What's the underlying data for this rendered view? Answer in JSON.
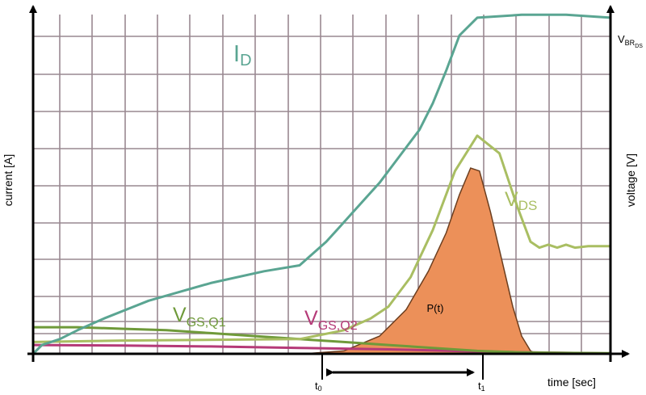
{
  "chart_data": {
    "type": "line",
    "title": "",
    "xlabel": "time [sec]",
    "ylabel_left": "current [A]",
    "ylabel_right": "voltage [V]",
    "right_top_label": {
      "main": "V",
      "sub": "BR",
      "subsub": "DS"
    },
    "markers": {
      "t0": "t",
      "t0_sub": "0",
      "t1": "t",
      "t1_sub": "1"
    },
    "grid": true,
    "colors": {
      "id": "#5aa592",
      "vds": "#a9be62",
      "vgs_q1": "#6f9a3a",
      "vgs_q2": "#b53a78",
      "power_fill": "#ec9059",
      "power_stroke": "#6b3e1f",
      "grid": "#998891",
      "axis": "#000000"
    },
    "series": [
      {
        "name": "I",
        "name_sub": "D",
        "color_key": "id",
        "points": [
          [
            0,
            0
          ],
          [
            0.2,
            0.3
          ],
          [
            0.6,
            0.5
          ],
          [
            1,
            0.8
          ],
          [
            1.6,
            1.2
          ],
          [
            2.6,
            1.8
          ],
          [
            4,
            2.4
          ],
          [
            5.2,
            2.8
          ],
          [
            6,
            3
          ],
          [
            6.3,
            3.4
          ],
          [
            6.6,
            3.8
          ],
          [
            6.9,
            4.3
          ],
          [
            7.2,
            4.8
          ],
          [
            7.5,
            5.3
          ],
          [
            7.8,
            5.8
          ],
          [
            8.1,
            6.4
          ],
          [
            8.4,
            7
          ],
          [
            8.7,
            7.6
          ],
          [
            9,
            8.5
          ],
          [
            9.3,
            9.6
          ],
          [
            9.6,
            10.8
          ],
          [
            10,
            11.4
          ],
          [
            11,
            11.5
          ],
          [
            12,
            11.5
          ],
          [
            13,
            11.4
          ]
        ]
      },
      {
        "name": "V",
        "name_sub": "DS",
        "color_key": "vds",
        "points": [
          [
            0,
            0.4
          ],
          [
            2,
            0.45
          ],
          [
            6,
            0.5
          ],
          [
            7,
            0.8
          ],
          [
            7.6,
            1.2
          ],
          [
            8,
            1.6
          ],
          [
            8.5,
            2.6
          ],
          [
            9,
            4.2
          ],
          [
            9.5,
            6.2
          ],
          [
            10,
            7.4
          ],
          [
            10.5,
            6.8
          ],
          [
            10.9,
            5
          ],
          [
            11.2,
            3.8
          ],
          [
            11.4,
            3.6
          ],
          [
            11.6,
            3.7
          ],
          [
            11.8,
            3.6
          ],
          [
            12,
            3.7
          ],
          [
            12.2,
            3.6
          ],
          [
            12.5,
            3.65
          ],
          [
            13,
            3.65
          ]
        ]
      },
      {
        "name": "V",
        "name_sub": "GS,Q1",
        "color_key": "vgs_q1",
        "points": [
          [
            0,
            0.9
          ],
          [
            1,
            0.9
          ],
          [
            2,
            0.85
          ],
          [
            3,
            0.8
          ],
          [
            4,
            0.7
          ],
          [
            5,
            0.6
          ],
          [
            6,
            0.5
          ],
          [
            7,
            0.4
          ],
          [
            8,
            0.3
          ],
          [
            9,
            0.2
          ],
          [
            10,
            0.1
          ],
          [
            11,
            0.05
          ],
          [
            12,
            0.03
          ],
          [
            13,
            0.02
          ]
        ]
      },
      {
        "name": "V",
        "name_sub": "GS,Q2",
        "color_key": "vgs_q2",
        "points": [
          [
            0,
            0.3
          ],
          [
            2,
            0.28
          ],
          [
            4,
            0.25
          ],
          [
            6,
            0.2
          ],
          [
            8,
            0.15
          ],
          [
            10,
            0.08
          ],
          [
            12,
            0.03
          ],
          [
            13,
            0.01
          ]
        ]
      },
      {
        "name": "P(t)",
        "color_key": "power_fill",
        "points": [
          [
            6.1,
            0
          ],
          [
            7,
            0.1
          ],
          [
            7.8,
            0.6
          ],
          [
            8.4,
            1.5
          ],
          [
            8.9,
            2.8
          ],
          [
            9.3,
            4.1
          ],
          [
            9.6,
            5.4
          ],
          [
            9.85,
            6.3
          ],
          [
            10.05,
            6.2
          ],
          [
            10.3,
            4.8
          ],
          [
            10.55,
            3.2
          ],
          [
            10.8,
            1.6
          ],
          [
            11,
            0.6
          ],
          [
            11.2,
            0.1
          ],
          [
            11.35,
            0
          ]
        ]
      }
    ]
  }
}
